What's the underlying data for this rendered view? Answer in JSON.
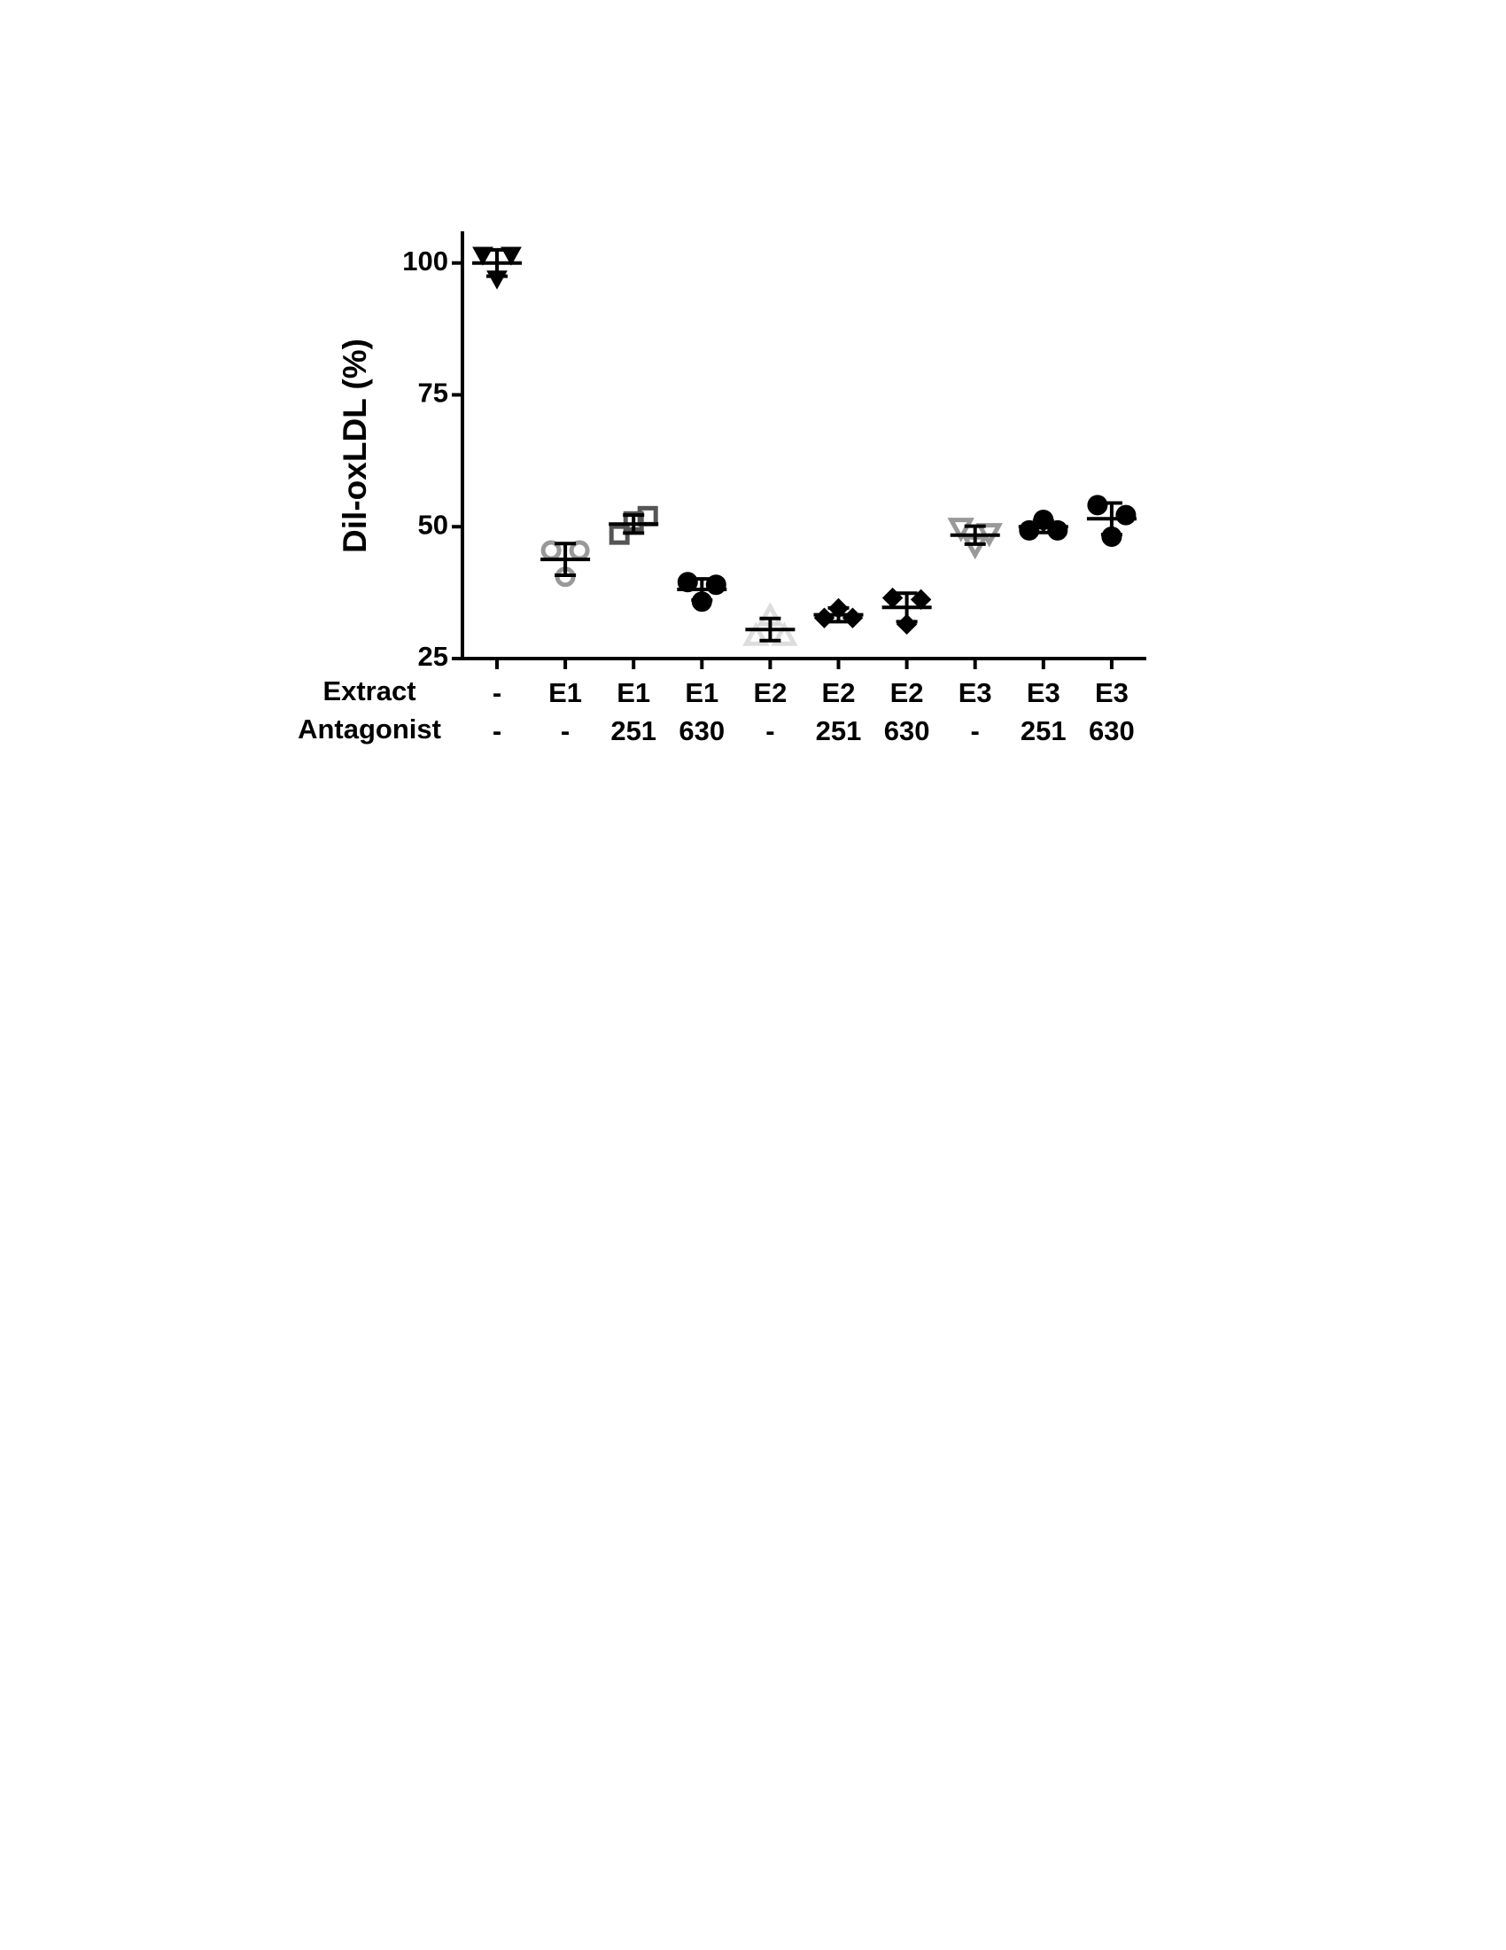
{
  "chart_data": {
    "type": "dot",
    "y_label": "Dil-oxLDL (%)",
    "ylim": [
      25,
      106
    ],
    "yticks": [
      25,
      50,
      75,
      100
    ],
    "row_names": [
      "Extract",
      "Antagonist"
    ],
    "extract": [
      "-",
      "E1",
      "E1",
      "E1",
      "E2",
      "E2",
      "E2",
      "E3",
      "E3",
      "E3"
    ],
    "antagonist": [
      "-",
      "-",
      "251",
      "630",
      "-",
      "251",
      "630",
      "-",
      "251",
      "630"
    ],
    "groups": [
      {
        "values": [
          101.5,
          101.5,
          97
        ],
        "mean": 100,
        "sd": 2.5,
        "color": "#000000",
        "marker": "triangle-down",
        "filled": true
      },
      {
        "values": [
          45.5,
          45.5,
          40.5
        ],
        "mean": 43.8,
        "sd": 3.0,
        "color": "#999999",
        "marker": "circle",
        "filled": false
      },
      {
        "values": [
          48.5,
          52,
          51
        ],
        "mean": 50.5,
        "sd": 1.7,
        "color": "#555555",
        "marker": "square",
        "filled": false
      },
      {
        "values": [
          39.5,
          39,
          35.8
        ],
        "mean": 38.1,
        "sd": 2.0,
        "color": "#000000",
        "marker": "circle",
        "filled": true
      },
      {
        "values": [
          29.3,
          29.3,
          33
        ],
        "mean": 30.5,
        "sd": 2.1,
        "color": "#dddddd",
        "marker": "triangle-up",
        "filled": false
      },
      {
        "values": [
          32.7,
          32.7,
          34.5
        ],
        "mean": 33.3,
        "sd": 1.3,
        "color": "#000000",
        "marker": "diamond",
        "filled": true
      },
      {
        "values": [
          36.5,
          36.2,
          31.5
        ],
        "mean": 34.7,
        "sd": 2.7,
        "color": "#000000",
        "marker": "diamond",
        "filled": true
      },
      {
        "values": [
          49.8,
          48.8,
          46.5
        ],
        "mean": 48.4,
        "sd": 1.7,
        "color": "#999999",
        "marker": "triangle-down",
        "filled": false
      },
      {
        "values": [
          49.3,
          49.3,
          51.3
        ],
        "mean": 50,
        "sd": 1.1,
        "color": "#000000",
        "marker": "circle",
        "filled": true
      },
      {
        "values": [
          54.1,
          52.2,
          48.1
        ],
        "mean": 51.5,
        "sd": 3.0,
        "color": "#000000",
        "marker": "circle",
        "filled": true
      }
    ]
  }
}
